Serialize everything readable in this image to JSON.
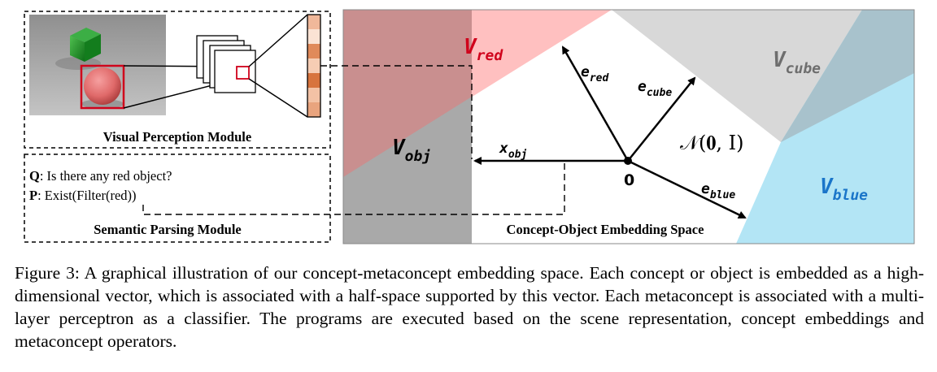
{
  "figure": {
    "visual_module_title": "Visual Perception Module",
    "semantic_module_title": "Semantic Parsing Module",
    "question_label": "Q",
    "question_text": ": Is there any red object?",
    "program_label": "P",
    "program_text": ": Exist(Filter(red))",
    "space_title": "Concept-Object Embedding Space",
    "v_red": "V",
    "v_red_sub": "red",
    "v_cube": "V",
    "v_cube_sub": "cube",
    "v_blue": "V",
    "v_blue_sub": "blue",
    "v_obj": "V",
    "v_obj_sub": "obj",
    "e_red": "e",
    "e_red_sub": "red",
    "e_cube": "e",
    "e_cube_sub": "cube",
    "e_blue": "e",
    "e_blue_sub": "blue",
    "x_obj": "x",
    "x_obj_sub": "obj",
    "origin_label": "0",
    "normal_dist": "𝒩(𝟎, I)"
  },
  "caption": {
    "label": "Figure 3:",
    "text": "A graphical illustration of our concept-metaconcept embedding space. Each concept or object is embedded as a high-dimensional vector, which is associated with a half-space supported by this vector. Each metaconcept is associated with a multi-layer perceptron as a classifier. The programs are executed based on the scene representation, concept embeddings and metaconcept operators."
  },
  "colors": {
    "red_region": "#ffc0c0",
    "cube_region": "#d8d8d8",
    "blue_region": "#b3e5f5",
    "obj_region": "#a9a9a9",
    "red_text": "#d0021b",
    "cube_text": "#6e6e6e",
    "blue_text": "#1a75c9"
  }
}
